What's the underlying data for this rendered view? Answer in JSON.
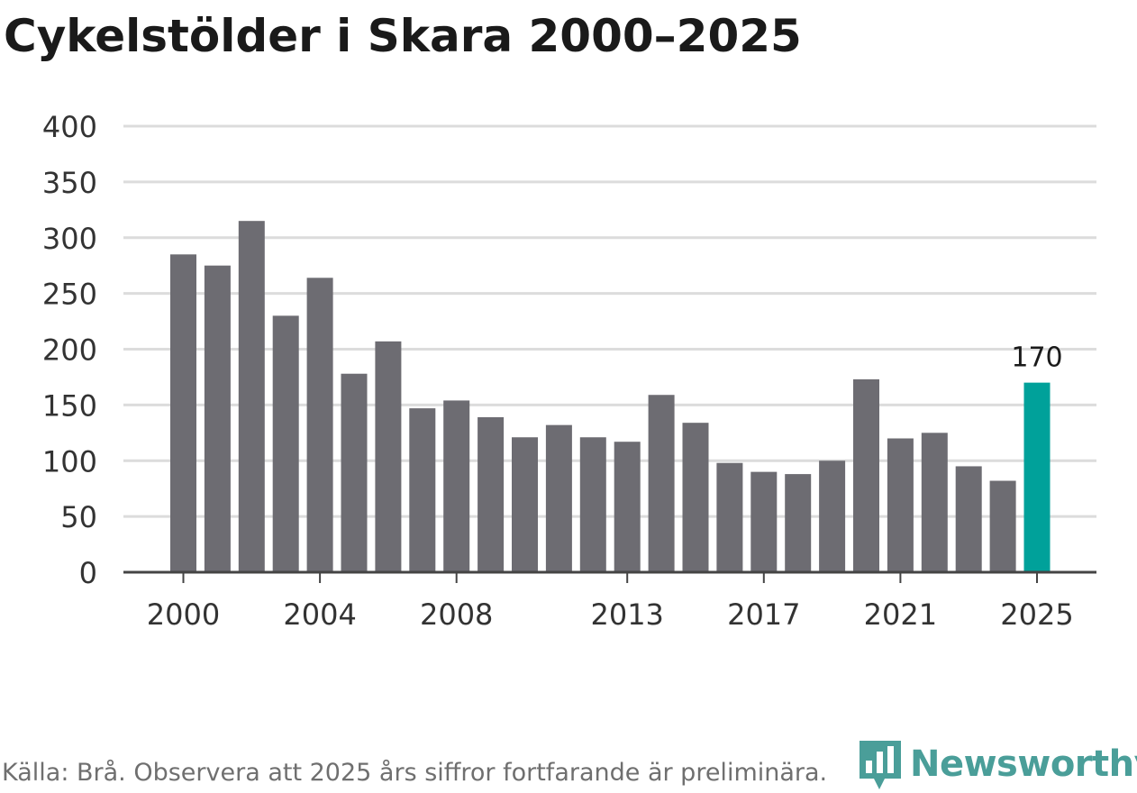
{
  "title": "Cykelstölder i Skara 2000–2025",
  "source_note": "Källa: Brå. Observera att 2025 års siffror fortfarande är preliminära.",
  "brand": {
    "name": "Newsworthy",
    "icon": "newsworthy-logo-icon",
    "color": "#4a9e99"
  },
  "colors": {
    "bar": "#6d6c72",
    "highlight": "#00a19a",
    "grid": "#dcdcdc",
    "axis": "#444444",
    "text": "#333333"
  },
  "chart_data": {
    "type": "bar",
    "categories": [
      "2000",
      "2001",
      "2002",
      "2003",
      "2004",
      "2005",
      "2006",
      "2007",
      "2008",
      "2009",
      "2010",
      "2011",
      "2012",
      "2013",
      "2014",
      "2015",
      "2016",
      "2017",
      "2018",
      "2019",
      "2020",
      "2021",
      "2022",
      "2023",
      "2024",
      "2025"
    ],
    "values": [
      285,
      275,
      315,
      230,
      264,
      178,
      207,
      147,
      154,
      139,
      121,
      132,
      121,
      117,
      159,
      134,
      98,
      90,
      88,
      100,
      173,
      120,
      125,
      95,
      82,
      170
    ],
    "highlight_category": "2025",
    "data_labels": [
      {
        "category": "2025",
        "text": "170"
      }
    ],
    "xticks": [
      "2000",
      "2004",
      "2008",
      "2013",
      "2017",
      "2021",
      "2025"
    ],
    "yticks": [
      0,
      50,
      100,
      150,
      200,
      250,
      300,
      350,
      400
    ],
    "ylim": [
      0,
      400
    ],
    "xlabel": "",
    "ylabel": "",
    "grid": true,
    "legend": "none"
  }
}
